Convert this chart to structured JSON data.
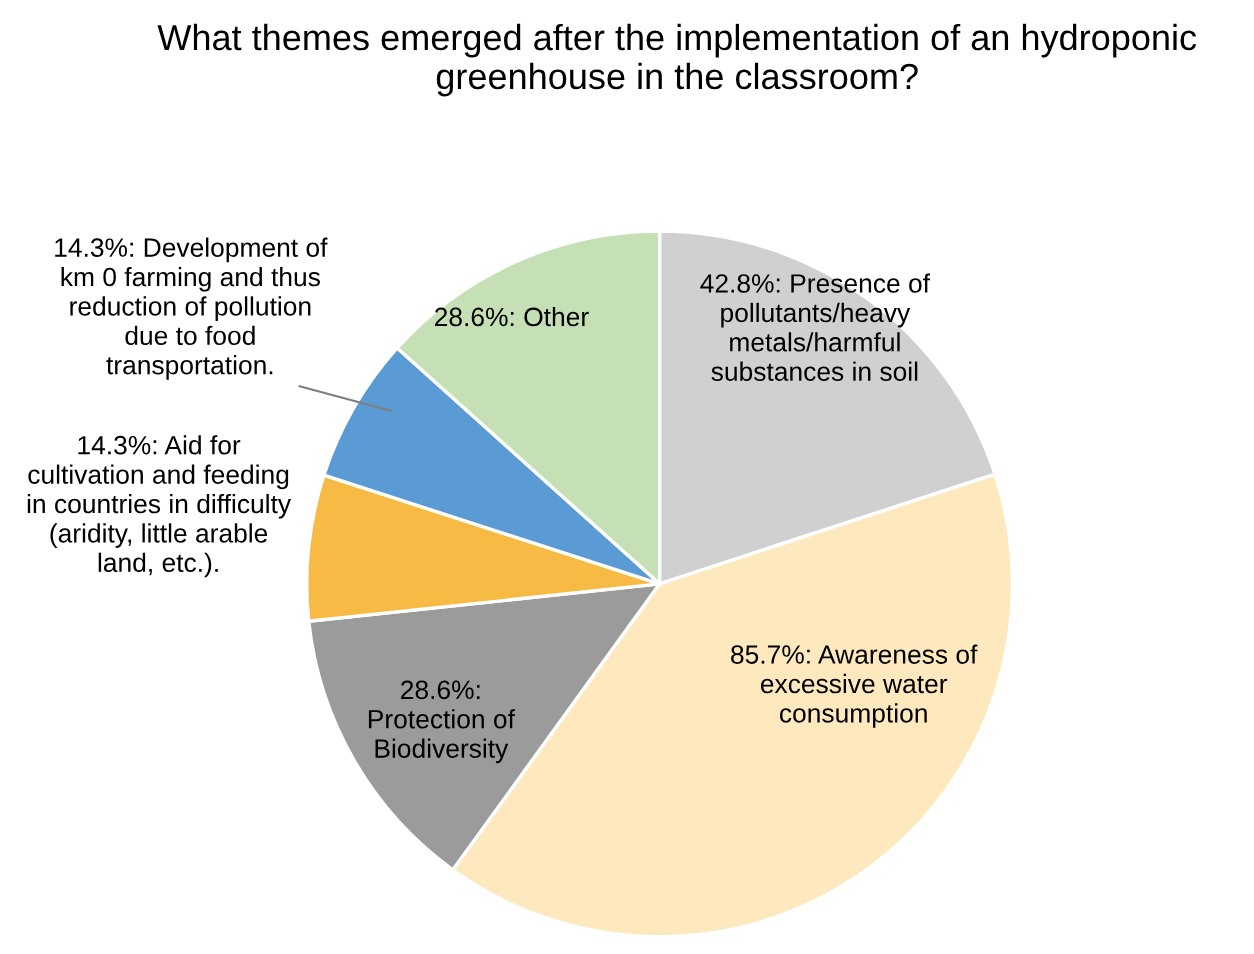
{
  "chart_data": {
    "type": "pie",
    "title": "What themes emerged after the implementation of an hydroponic\ngreenhouse in the classroom?",
    "categories": [
      "Presence of\npollutants/heavy\nmetals/harmful\nsubstances in soil",
      "Awareness of\nexcessive water\nconsumption",
      "\nProtection of\nBiodiversity",
      "Aid for\ncultivation and feeding\nin countries in difficulty\n(aridity, little arable\nland, etc.).",
      "Development of\nkm 0 farming and thus\nreduction of pollution\ndue to food\ntransportation.",
      "Other"
    ],
    "values": [
      42.8,
      85.7,
      28.6,
      14.3,
      14.3,
      28.6
    ],
    "value_labels": [
      "42.8%:",
      "85.7%:",
      "28.6%:",
      "14.3%:",
      "14.3%:",
      "28.6%:"
    ],
    "colors": [
      "#d0d0d0",
      "#fde9bd",
      "#9b9b9b",
      "#f7bb45",
      "#5b9bd5",
      "#c5e0b4"
    ],
    "legend": false
  }
}
